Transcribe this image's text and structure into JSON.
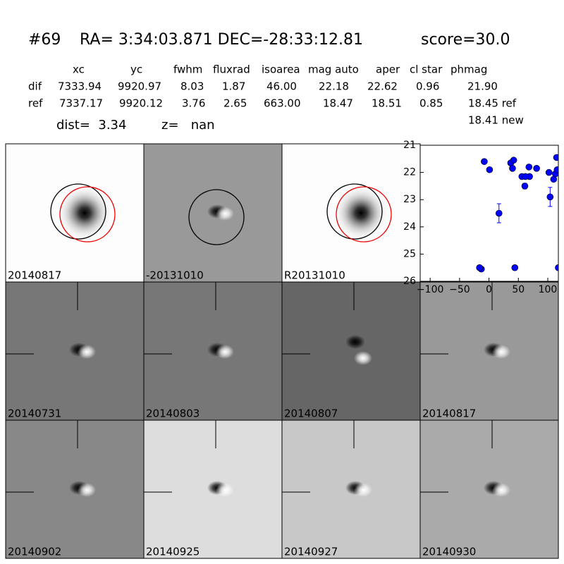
{
  "header": {
    "id": "#69",
    "coords": "RA= 3:34:03.871 DEC=-28:33:12.81",
    "score": "score=30.0"
  },
  "table": {
    "columns": [
      "xc",
      "yc",
      "fwhm",
      "fluxrad",
      "isoarea",
      "mag auto",
      "aper",
      "cl star",
      "phmag"
    ],
    "rows": [
      [
        "dif",
        "7333.94",
        "9920.97",
        "8.03",
        "1.87",
        "46.00",
        "22.18",
        "22.62",
        "0.96",
        "21.90"
      ],
      [
        "ref",
        "7337.17",
        "9920.12",
        "3.76",
        "2.65",
        "663.00",
        "18.47",
        "18.51",
        "0.85",
        "18.45 ref"
      ]
    ],
    "extra": "18.41 new"
  },
  "dist": "dist=  3.34",
  "z": "z=   nan",
  "panels": [
    {
      "label": "20140817",
      "label_color": "#000000"
    },
    {
      "label": "-20131010",
      "label_color": "#000000"
    },
    {
      "label": "R20131010",
      "label_color": "#000000"
    },
    {
      "label": "20140731",
      "label_color": "#000000"
    },
    {
      "label": "20140803",
      "label_color": "#000000"
    },
    {
      "label": "20140807",
      "label_color": "#000000"
    },
    {
      "label": "20140817",
      "label_color": "#ff0000"
    },
    {
      "label": "20140902",
      "label_color": "#000000"
    },
    {
      "label": "20140925",
      "label_color": "#000000"
    },
    {
      "label": "20140927",
      "label_color": "#000000"
    },
    {
      "label": "20140930",
      "label_color": "#000000"
    }
  ],
  "chart_data": {
    "type": "scatter",
    "color": "#0000ff",
    "y_inverted": true,
    "x": [
      -8,
      1,
      17,
      -13,
      -16,
      44,
      37,
      42,
      40,
      56,
      61,
      68,
      69,
      62,
      81,
      102,
      104,
      110,
      113,
      115,
      116,
      118
    ],
    "values": [
      21.6,
      21.9,
      23.5,
      25.55,
      25.5,
      25.5,
      21.65,
      21.55,
      21.85,
      22.15,
      22.5,
      21.8,
      22.15,
      22.15,
      21.85,
      22.0,
      22.9,
      22.25,
      22.05,
      21.45,
      21.9,
      25.5
    ],
    "errors": [
      0.08,
      0.05,
      0.35,
      0.05,
      0.05,
      0.05,
      0.05,
      0.05,
      0.05,
      0.05,
      0.1,
      0.05,
      0.05,
      0.05,
      0.05,
      0.05,
      0.35,
      0.05,
      0.05,
      0.05,
      0.05,
      0.05
    ],
    "xlim": [
      -117,
      118
    ],
    "ylim": [
      21,
      26
    ],
    "xticks": [
      {
        "value": -100,
        "label": "−100"
      },
      {
        "value": -50,
        "label": "−50"
      },
      0,
      50,
      100
    ],
    "yticks": [
      21,
      22,
      23,
      24,
      25,
      26
    ]
  }
}
